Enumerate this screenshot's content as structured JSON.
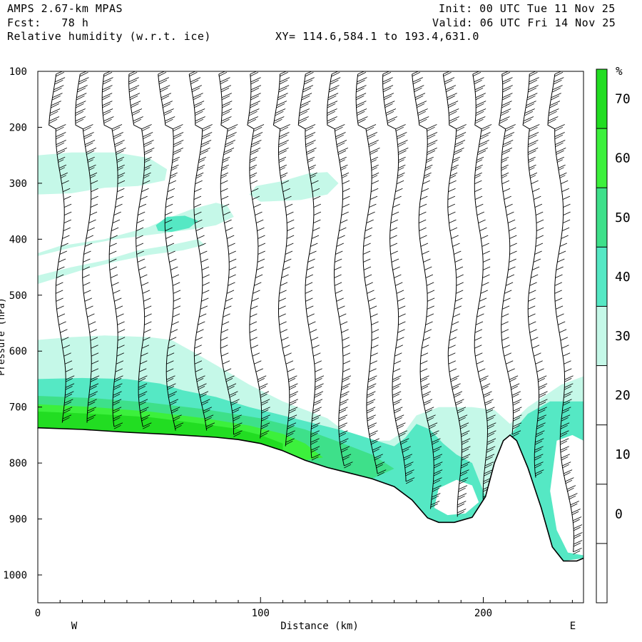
{
  "header": {
    "model": "AMPS 2.67-km MPAS",
    "fcst": "Fcst:   78 h",
    "field": "Relative humidity (w.r.t. ice)",
    "xy": "XY= 114.6,584.1 to 193.4,631.0",
    "init": "Init: 00 UTC Tue 11 Nov 25",
    "valid": "Valid: 06 UTC Fri 14 Nov 25"
  },
  "colors": {
    "rh_30_40": "#c5f8e8",
    "rh_40_50": "#55e8c4",
    "rh_50_60": "#3ee08a",
    "rh_60_70": "#3cf03c",
    "rh_70_plus": "#22dd22",
    "white": "#ffffff"
  },
  "chart_data": {
    "type": "cross-section",
    "xlabel": "Distance (km)",
    "ylabel": "Pressure (hPa)",
    "xlim": [
      0,
      245
    ],
    "ylim": [
      1050,
      100
    ],
    "x_ticks": [
      "0",
      "100",
      "200"
    ],
    "x_tick_values": [
      0,
      100,
      200
    ],
    "y_ticks": [
      "100",
      "200",
      "300",
      "400",
      "500",
      "600",
      "700",
      "800",
      "900",
      "1000"
    ],
    "y_tick_values": [
      100,
      200,
      300,
      400,
      500,
      600,
      700,
      800,
      900,
      1000
    ],
    "left_label": "W",
    "right_label": "E",
    "colorbar": {
      "unit": "%",
      "labels": [
        "70",
        "60",
        "50",
        "40",
        "30",
        "20",
        "10",
        "0"
      ],
      "label_values": [
        70,
        60,
        50,
        40,
        30,
        20,
        10,
        0
      ],
      "bands": [
        {
          "from": 70,
          "to": 80,
          "color": "#22dd22"
        },
        {
          "from": 60,
          "to": 70,
          "color": "#3cf03c"
        },
        {
          "from": 50,
          "to": 60,
          "color": "#3ee08a"
        },
        {
          "from": 40,
          "to": 50,
          "color": "#55e8c4"
        },
        {
          "from": 30,
          "to": 40,
          "color": "#c5f8e8"
        },
        {
          "from": -10,
          "to": 30,
          "color": "#ffffff"
        }
      ]
    },
    "terrain_surface": [
      {
        "x": 0,
        "p": 737
      },
      {
        "x": 20,
        "p": 740
      },
      {
        "x": 40,
        "p": 745
      },
      {
        "x": 60,
        "p": 749
      },
      {
        "x": 80,
        "p": 754
      },
      {
        "x": 90,
        "p": 758
      },
      {
        "x": 100,
        "p": 765
      },
      {
        "x": 110,
        "p": 778
      },
      {
        "x": 120,
        "p": 795
      },
      {
        "x": 130,
        "p": 808
      },
      {
        "x": 140,
        "p": 818
      },
      {
        "x": 150,
        "p": 828
      },
      {
        "x": 160,
        "p": 842
      },
      {
        "x": 168,
        "p": 866
      },
      {
        "x": 175,
        "p": 898
      },
      {
        "x": 180,
        "p": 906
      },
      {
        "x": 187,
        "p": 906
      },
      {
        "x": 195,
        "p": 897
      },
      {
        "x": 201,
        "p": 860
      },
      {
        "x": 205,
        "p": 800
      },
      {
        "x": 209,
        "p": 760
      },
      {
        "x": 212,
        "p": 750
      },
      {
        "x": 215,
        "p": 760
      },
      {
        "x": 220,
        "p": 808
      },
      {
        "x": 226,
        "p": 880
      },
      {
        "x": 231,
        "p": 950
      },
      {
        "x": 236,
        "p": 975
      },
      {
        "x": 242,
        "p": 975
      },
      {
        "x": 245,
        "p": 970
      }
    ],
    "wind_profile_x": [
      10,
      22,
      34,
      46,
      59,
      72,
      84,
      97,
      110,
      122,
      135,
      148,
      160,
      173,
      186,
      198,
      210,
      222,
      234
    ],
    "rh_regions": [
      {
        "band": "30-40",
        "pts": [
          [
            0,
            250
          ],
          [
            15,
            245
          ],
          [
            35,
            245
          ],
          [
            50,
            255
          ],
          [
            58,
            275
          ],
          [
            57,
            295
          ],
          [
            45,
            305
          ],
          [
            30,
            308
          ],
          [
            15,
            318
          ],
          [
            0,
            320
          ]
        ]
      },
      {
        "band": "30-40",
        "pts": [
          [
            98,
            305
          ],
          [
            110,
            296
          ],
          [
            122,
            282
          ],
          [
            130,
            280
          ],
          [
            135,
            300
          ],
          [
            130,
            320
          ],
          [
            118,
            330
          ],
          [
            100,
            333
          ],
          [
            95,
            320
          ]
        ]
      },
      {
        "band": "30-40",
        "pts": [
          [
            0,
            425
          ],
          [
            10,
            412
          ],
          [
            30,
            400
          ],
          [
            50,
            378
          ],
          [
            60,
            360
          ],
          [
            70,
            345
          ],
          [
            80,
            335
          ],
          [
            85,
            340
          ],
          [
            88,
            360
          ],
          [
            80,
            375
          ],
          [
            70,
            382
          ],
          [
            55,
            390
          ],
          [
            35,
            400
          ],
          [
            15,
            415
          ],
          [
            0,
            430
          ]
        ]
      },
      {
        "band": "30-40",
        "pts": [
          [
            0,
            465
          ],
          [
            15,
            450
          ],
          [
            30,
            438
          ],
          [
            45,
            420
          ],
          [
            60,
            410
          ],
          [
            72,
            400
          ],
          [
            75,
            410
          ],
          [
            65,
            420
          ],
          [
            50,
            428
          ],
          [
            35,
            440
          ],
          [
            20,
            455
          ],
          [
            0,
            480
          ]
        ]
      },
      {
        "band": "40-50",
        "pts": [
          [
            53,
            375
          ],
          [
            58,
            360
          ],
          [
            66,
            358
          ],
          [
            72,
            367
          ],
          [
            68,
            380
          ],
          [
            60,
            387
          ],
          [
            54,
            385
          ]
        ]
      },
      {
        "band": "30-40",
        "pts": [
          [
            0,
            580
          ],
          [
            15,
            575
          ],
          [
            30,
            572
          ],
          [
            50,
            575
          ],
          [
            60,
            580
          ],
          [
            70,
            602
          ],
          [
            80,
            625
          ],
          [
            95,
            660
          ],
          [
            110,
            690
          ],
          [
            130,
            720
          ],
          [
            140,
            750
          ],
          [
            150,
            760
          ],
          [
            158,
            760
          ],
          [
            165,
            742
          ],
          [
            170,
            715
          ],
          [
            180,
            700
          ],
          [
            195,
            700
          ],
          [
            205,
            705
          ],
          [
            212,
            730
          ],
          [
            220,
            700
          ],
          [
            235,
            660
          ],
          [
            245,
            645
          ],
          [
            245,
            970
          ],
          [
            236,
            975
          ],
          [
            231,
            950
          ],
          [
            226,
            880
          ],
          [
            220,
            808
          ],
          [
            215,
            760
          ],
          [
            212,
            750
          ],
          [
            209,
            760
          ],
          [
            205,
            800
          ],
          [
            201,
            860
          ],
          [
            195,
            897
          ],
          [
            187,
            906
          ],
          [
            180,
            906
          ],
          [
            175,
            898
          ],
          [
            168,
            866
          ],
          [
            160,
            842
          ],
          [
            150,
            828
          ],
          [
            140,
            818
          ],
          [
            130,
            808
          ],
          [
            120,
            795
          ],
          [
            110,
            778
          ],
          [
            100,
            765
          ],
          [
            90,
            758
          ],
          [
            80,
            754
          ],
          [
            60,
            749
          ],
          [
            40,
            745
          ],
          [
            20,
            740
          ],
          [
            0,
            737
          ]
        ]
      },
      {
        "band": "40-50",
        "pts": [
          [
            0,
            650
          ],
          [
            20,
            648
          ],
          [
            40,
            650
          ],
          [
            55,
            658
          ],
          [
            65,
            670
          ],
          [
            80,
            682
          ],
          [
            95,
            700
          ],
          [
            110,
            715
          ],
          [
            125,
            730
          ],
          [
            140,
            745
          ],
          [
            152,
            760
          ],
          [
            160,
            770
          ],
          [
            165,
            755
          ],
          [
            170,
            730
          ],
          [
            176,
            740
          ],
          [
            182,
            765
          ],
          [
            188,
            785
          ],
          [
            195,
            800
          ],
          [
            201,
            860
          ],
          [
            195,
            897
          ],
          [
            187,
            906
          ],
          [
            180,
            906
          ],
          [
            175,
            898
          ],
          [
            168,
            866
          ],
          [
            160,
            842
          ],
          [
            150,
            828
          ],
          [
            140,
            818
          ],
          [
            130,
            808
          ],
          [
            120,
            795
          ],
          [
            110,
            778
          ],
          [
            100,
            765
          ],
          [
            90,
            758
          ],
          [
            80,
            754
          ],
          [
            60,
            749
          ],
          [
            40,
            745
          ],
          [
            20,
            740
          ],
          [
            0,
            737
          ]
        ]
      },
      {
        "band": "40-50",
        "pts": [
          [
            212,
            750
          ],
          [
            220,
            712
          ],
          [
            230,
            690
          ],
          [
            245,
            690
          ],
          [
            245,
            970
          ],
          [
            236,
            975
          ],
          [
            231,
            950
          ],
          [
            226,
            880
          ],
          [
            220,
            808
          ],
          [
            215,
            760
          ]
        ]
      },
      {
        "band": "50-60",
        "pts": [
          [
            0,
            680
          ],
          [
            25,
            684
          ],
          [
            50,
            692
          ],
          [
            75,
            704
          ],
          [
            100,
            720
          ],
          [
            120,
            740
          ],
          [
            135,
            762
          ],
          [
            150,
            785
          ],
          [
            160,
            810
          ],
          [
            150,
            828
          ],
          [
            140,
            818
          ],
          [
            130,
            808
          ],
          [
            120,
            795
          ],
          [
            110,
            778
          ],
          [
            100,
            765
          ],
          [
            90,
            758
          ],
          [
            80,
            754
          ],
          [
            60,
            749
          ],
          [
            40,
            745
          ],
          [
            20,
            740
          ],
          [
            0,
            737
          ]
        ]
      },
      {
        "band": "60-70",
        "pts": [
          [
            0,
            695
          ],
          [
            25,
            700
          ],
          [
            50,
            708
          ],
          [
            75,
            720
          ],
          [
            95,
            733
          ],
          [
            110,
            748
          ],
          [
            120,
            765
          ],
          [
            128,
            790
          ],
          [
            120,
            795
          ],
          [
            110,
            778
          ],
          [
            100,
            765
          ],
          [
            90,
            758
          ],
          [
            80,
            754
          ],
          [
            60,
            749
          ],
          [
            40,
            745
          ],
          [
            20,
            740
          ],
          [
            0,
            737
          ]
        ]
      },
      {
        "band": "70+",
        "pts": [
          [
            0,
            708
          ],
          [
            25,
            712
          ],
          [
            50,
            718
          ],
          [
            70,
            728
          ],
          [
            88,
            738
          ],
          [
            100,
            750
          ],
          [
            110,
            765
          ],
          [
            110,
            778
          ],
          [
            100,
            765
          ],
          [
            90,
            758
          ],
          [
            80,
            754
          ],
          [
            60,
            749
          ],
          [
            40,
            745
          ],
          [
            20,
            740
          ],
          [
            0,
            737
          ]
        ]
      },
      {
        "band": "white",
        "pts": [
          [
            180,
            845
          ],
          [
            188,
            830
          ],
          [
            195,
            840
          ],
          [
            198,
            870
          ],
          [
            192,
            890
          ],
          [
            184,
            893
          ],
          [
            178,
            880
          ]
        ]
      },
      {
        "band": "white",
        "pts": [
          [
            233,
            760
          ],
          [
            240,
            750
          ],
          [
            245,
            760
          ],
          [
            245,
            965
          ],
          [
            238,
            960
          ],
          [
            233,
            920
          ],
          [
            230,
            850
          ]
        ]
      }
    ]
  }
}
